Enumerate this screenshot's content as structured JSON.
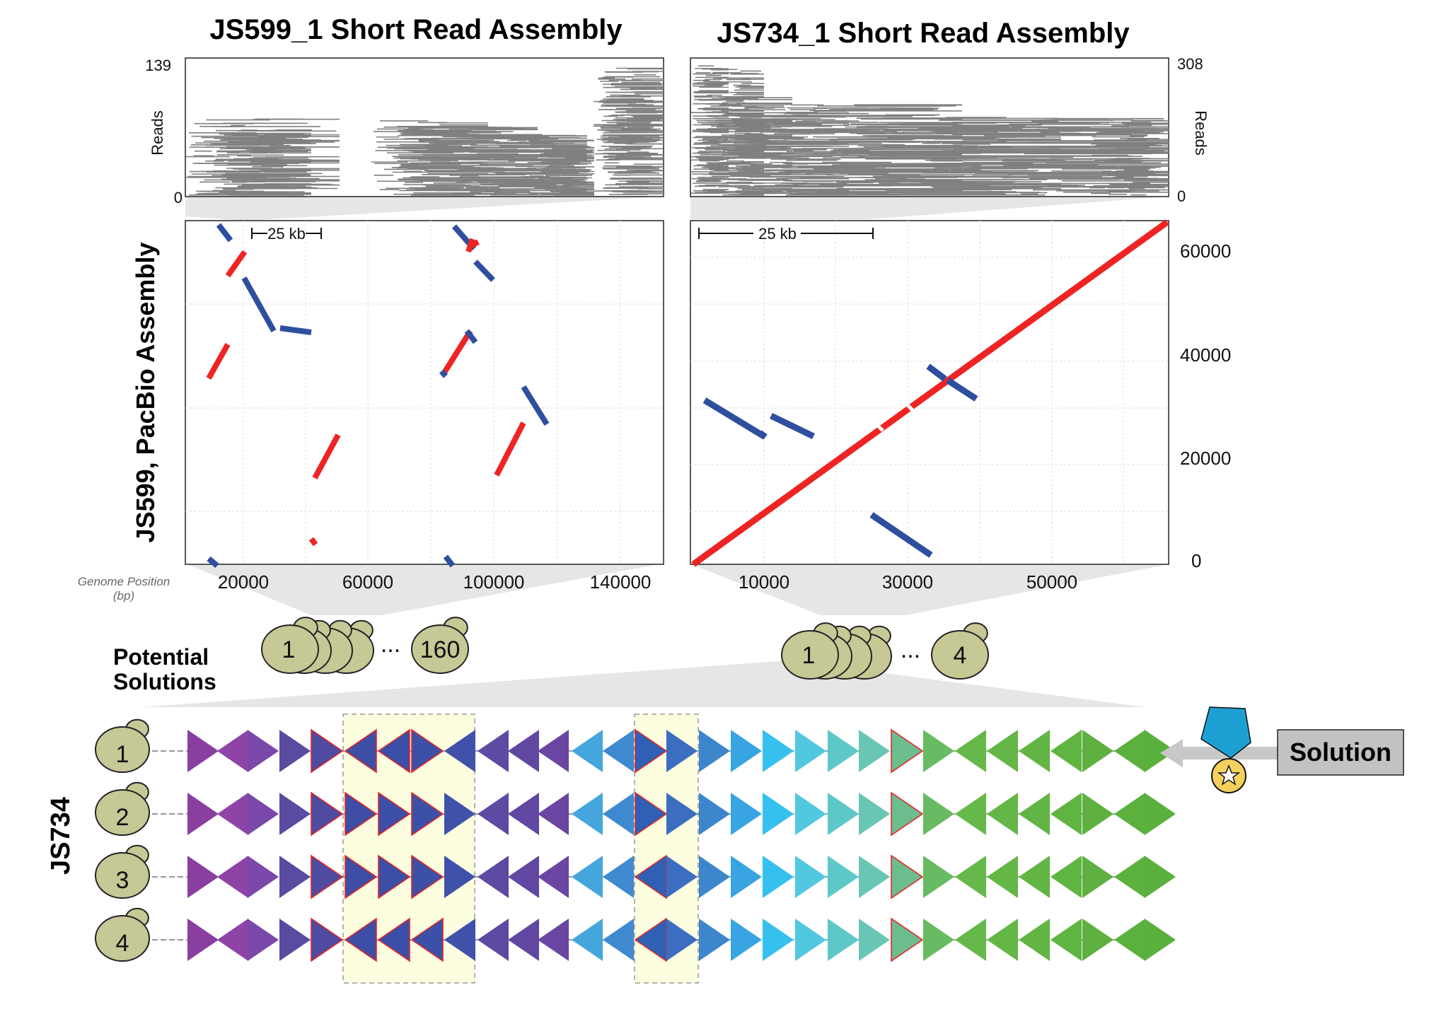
{
  "panels": {
    "left": {
      "title": "JS599_1 Short Read Assembly",
      "reads_label": "Reads",
      "reads_max": "139",
      "reads_min": "0",
      "scale_label": "25 kb",
      "x_ticks": [
        "20000",
        "60000",
        "100000",
        "140000"
      ],
      "genome_position": "Genome Position",
      "genome_position_unit": "(bp)"
    },
    "right": {
      "title": "JS734_1 Short Read Assembly",
      "reads_label": "Reads",
      "reads_max": "308",
      "reads_min": "0",
      "scale_label": "25 kb",
      "x_ticks": [
        "10000",
        "30000",
        "50000"
      ],
      "y_ticks": [
        "60000",
        "40000",
        "20000",
        "0"
      ]
    },
    "y_axis_label": "JS599, PacBio Assembly"
  },
  "colors": {
    "forward": "#ee2424",
    "reverse": "#2e4f9e",
    "reads": "#808080",
    "cell": "#c6c895",
    "highlight": "#fdfde0",
    "arrow": "#c8c8c8",
    "badge_blue": "#1e9fd4",
    "badge_gold": "#f3d15c"
  },
  "populations": {
    "left": {
      "first": "1",
      "ellipsis": "...",
      "last": "160"
    },
    "right": {
      "first": "1",
      "ellipsis": "...",
      "last": "4"
    }
  },
  "solutions": {
    "title_line1": "Potential",
    "title_line2": "Solutions",
    "strain_label": "JS734",
    "row_labels": [
      "1",
      "2",
      "3",
      "4"
    ],
    "solution_label": "Solution",
    "solution_row": "1"
  },
  "icons": {
    "cell": "yeast-cell-icon",
    "badge": "ribbon-badge-icon",
    "star": "star-icon",
    "arrow": "arrow-left-icon"
  }
}
